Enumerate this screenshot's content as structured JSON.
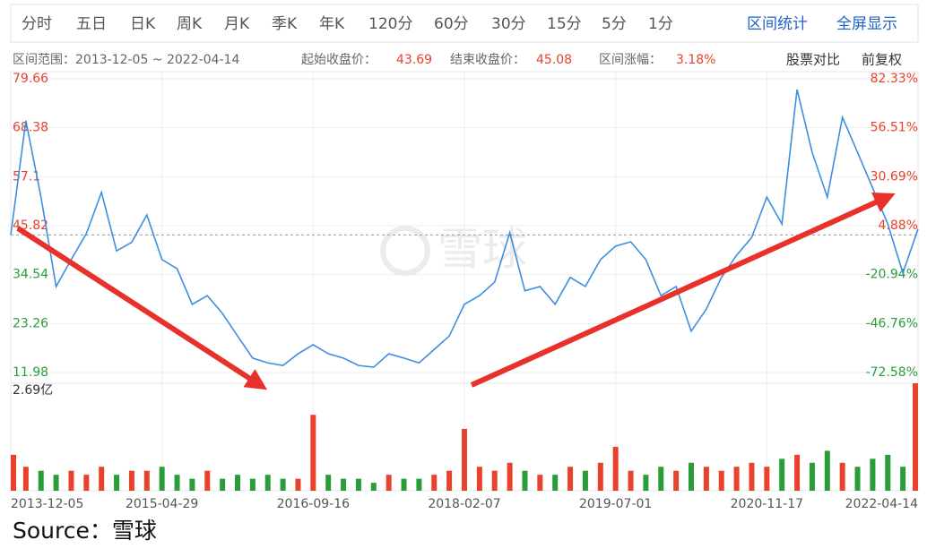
{
  "toolbar": {
    "tabs": [
      "分时",
      "五日",
      "日K",
      "周K",
      "月K",
      "季K",
      "年K",
      "120分",
      "60分",
      "30分",
      "15分",
      "5分",
      "1分"
    ],
    "actions": [
      "区间统计",
      "全屏显示"
    ]
  },
  "info": {
    "range": "区间范围：2013-12-05 ~ 2022-04-14",
    "start_label": "起始收盘价：",
    "start_close": 43.69,
    "end_label": "结束收盘价：",
    "end_close": 45.08,
    "change_label": "区间涨幅：",
    "change": "3.18%",
    "compare": "股票对比",
    "adjust": "前复权"
  },
  "watermark": "雪球",
  "source": "Source：雪球",
  "chart_data": [
    {
      "type": "line",
      "categories": [
        "2013-12-05",
        null,
        null,
        null,
        null,
        null,
        null,
        null,
        null,
        null,
        "2015-04-29",
        null,
        null,
        null,
        null,
        null,
        null,
        null,
        null,
        null,
        "2016-09-16",
        null,
        null,
        null,
        null,
        null,
        null,
        null,
        null,
        null,
        "2018-02-07",
        null,
        null,
        null,
        null,
        null,
        null,
        null,
        null,
        null,
        "2019-07-01",
        null,
        null,
        null,
        null,
        null,
        null,
        null,
        null,
        null,
        "2020-11-17",
        null,
        null,
        null,
        null,
        null,
        null,
        null,
        null,
        null,
        "2022-04-14"
      ],
      "values": [
        43.69,
        70,
        52.4,
        31.8,
        38,
        44,
        53.5,
        40,
        42,
        48.3,
        38,
        35.9,
        27.7,
        29.7,
        25.6,
        20.4,
        15.3,
        14.2,
        13.6,
        16.3,
        18.4,
        16.3,
        15.3,
        13.6,
        13.2,
        16.3,
        15.3,
        14.2,
        17.3,
        20.4,
        27.7,
        29.7,
        32.8,
        44.2,
        30.8,
        31.8,
        27.7,
        33.9,
        31.8,
        38,
        41.1,
        42.1,
        38,
        29.7,
        31.8,
        21.5,
        26.6,
        33.9,
        39,
        43.1,
        52.4,
        46.2,
        77.2,
        62.7,
        52.4,
        70.8,
        62.7,
        54.5,
        46.2,
        34.9,
        45.08
      ],
      "color": "#3b8fe0",
      "up_color": "#e8412c",
      "down_color": "#2a9d3a",
      "grid": true,
      "ylim": [
        11.98,
        79.66
      ],
      "yticks": [
        11.98,
        23.26,
        34.54,
        45.82,
        57.1,
        68.38,
        79.66
      ],
      "y2lim": [
        -72.58,
        82.33
      ],
      "y2ticks": [
        {
          "value": -72.58,
          "label": "-72.58%"
        },
        {
          "value": -46.76,
          "label": "-46.76%"
        },
        {
          "value": -20.94,
          "label": "-20.94%"
        },
        {
          "value": 4.88,
          "label": "4.88%"
        },
        {
          "value": 30.69,
          "label": "30.69%"
        },
        {
          "value": 56.51,
          "label": "56.51%"
        },
        {
          "value": 82.33,
          "label": "82.33%"
        }
      ]
    },
    {
      "type": "bar",
      "values": [
        0.9,
        0.6,
        0.5,
        0.4,
        0.5,
        0.4,
        0.6,
        0.4,
        0.5,
        0.5,
        0.6,
        0.4,
        0.3,
        0.5,
        0.3,
        0.4,
        0.3,
        0.4,
        0.3,
        0.3,
        1.9,
        0.4,
        0.3,
        0.3,
        0.2,
        0.4,
        0.3,
        0.3,
        0.4,
        0.5,
        1.55,
        0.6,
        0.5,
        0.7,
        0.5,
        0.4,
        0.4,
        0.6,
        0.5,
        0.7,
        1.1,
        0.5,
        0.4,
        0.6,
        0.5,
        0.7,
        0.6,
        0.5,
        0.6,
        0.7,
        0.6,
        0.8,
        0.9,
        0.7,
        1.0,
        0.7,
        0.6,
        0.8,
        0.9,
        0.6,
        2.69
      ],
      "up_color": "#e8412c",
      "down_color": "#2a9d3a",
      "ylim": [
        0,
        2.69
      ],
      "yticks": [
        {
          "value": 2.69,
          "label": "2.69亿"
        }
      ]
    }
  ]
}
